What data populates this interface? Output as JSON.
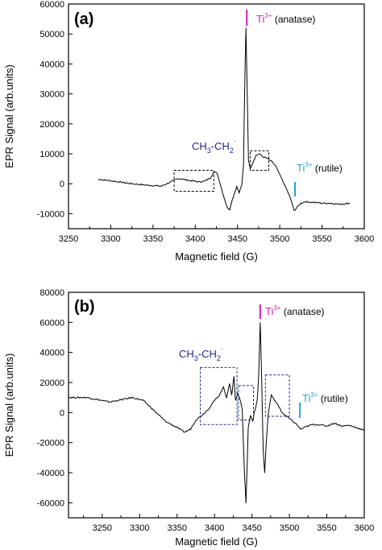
{
  "chart_data": [
    {
      "type": "line",
      "panel_label": "(a)",
      "xlabel": "Magnetic field (G)",
      "ylabel": "EPR Signal (arb.units)",
      "xlim": [
        3250,
        3600
      ],
      "ylim": [
        -15000,
        60000
      ],
      "x_ticks": [
        "3250",
        "3300",
        "3350",
        "3400",
        "3450",
        "3500",
        "3550",
        "3600"
      ],
      "y_ticks": [
        "-10000",
        "0",
        "10000",
        "20000",
        "30000",
        "40000",
        "50000",
        "60000"
      ],
      "series": [
        {
          "color": "#000000",
          "x": [
            3285,
            3300,
            3320,
            3340,
            3360,
            3380,
            3395,
            3405,
            3412,
            3418,
            3422,
            3426,
            3430,
            3434,
            3438,
            3441,
            3443,
            3446,
            3449,
            3452,
            3455,
            3457,
            3459,
            3460,
            3461,
            3463,
            3465,
            3468,
            3472,
            3476,
            3480,
            3485,
            3490,
            3495,
            3500,
            3505,
            3510,
            3514,
            3517,
            3520,
            3525,
            3530,
            3540,
            3550,
            3560,
            3570,
            3583
          ],
          "values": [
            1500,
            1000,
            200,
            -400,
            -800,
            1800,
            1000,
            600,
            1000,
            2000,
            4000,
            3500,
            -500,
            -4500,
            -8000,
            -8500,
            -6000,
            -3500,
            -1000,
            -3000,
            -500,
            6000,
            40000,
            52000,
            38000,
            8000,
            5000,
            7000,
            9500,
            10000,
            9000,
            8500,
            7500,
            6000,
            3000,
            0,
            -3000,
            -6000,
            -9000,
            -8000,
            -6500,
            -6000,
            -6200,
            -6500,
            -6500,
            -6800,
            -6500
          ]
        }
      ],
      "annotations": [
        {
          "text": "Ti",
          "sup": "3+",
          "suffix": " (anatase)",
          "color": "#d21fb5",
          "x": 3461
        },
        {
          "text": "CH",
          "sub1": "3",
          "mid": "-CH",
          "sub2": "2",
          "sup": "·",
          "color": "#1d2a8c"
        },
        {
          "text": "Ti",
          "sup": "3+",
          "suffix": " (rutile)",
          "color": "#2aa0d8",
          "x": 3518
        }
      ],
      "boxes": [
        {
          "x0": 3375,
          "x1": 3422,
          "y0": -2500,
          "y1": 4500,
          "color": "#000000"
        },
        {
          "x0": 3465,
          "x1": 3487,
          "y0": 4500,
          "y1": 11000,
          "color": "#000000"
        }
      ]
    },
    {
      "type": "line",
      "panel_label": "(b)",
      "xlabel": "Magnetic field (G)",
      "ylabel": "EPR Signal (arb.units)",
      "xlim": [
        3205,
        3600
      ],
      "ylim": [
        -70000,
        80000
      ],
      "x_ticks": [
        "3250",
        "3300",
        "3350",
        "3400",
        "3450",
        "3500",
        "3550",
        "3600"
      ],
      "y_ticks": [
        "-60000",
        "-40000",
        "-20000",
        "0",
        "20000",
        "40000",
        "60000",
        "80000"
      ],
      "series": [
        {
          "color": "#000000",
          "x": [
            3205,
            3230,
            3260,
            3290,
            3305,
            3320,
            3335,
            3350,
            3360,
            3368,
            3375,
            3385,
            3393,
            3400,
            3407,
            3412,
            3416,
            3420,
            3423,
            3426,
            3428,
            3431,
            3434,
            3437,
            3440,
            3442,
            3443,
            3445,
            3448,
            3451,
            3453,
            3455,
            3457,
            3459,
            3461,
            3463,
            3465,
            3467,
            3469,
            3472,
            3476,
            3480,
            3485,
            3490,
            3495,
            3500,
            3505,
            3510,
            3515,
            3520,
            3530,
            3540,
            3550,
            3560,
            3570,
            3580,
            3590,
            3600
          ],
          "values": [
            10000,
            10000,
            7000,
            10000,
            8000,
            1000,
            -6000,
            -10000,
            -13000,
            -11000,
            -5000,
            -1000,
            3000,
            8000,
            12000,
            17000,
            10000,
            19000,
            12000,
            24000,
            8000,
            13000,
            9000,
            2000,
            -40000,
            -60000,
            -45000,
            -10000,
            -2000,
            -6000,
            0,
            3000,
            8000,
            25000,
            60000,
            22000,
            -25000,
            -40000,
            -20000,
            0,
            12000,
            8000,
            5000,
            0,
            -2000,
            -4000,
            -6000,
            -8000,
            -11000,
            -10000,
            -8000,
            -8000,
            -9000,
            -7000,
            -9000,
            -8500,
            -10000,
            -12000
          ]
        }
      ],
      "annotations": [
        {
          "text": "Ti",
          "sup": "3+",
          "suffix": " (anatase)",
          "color": "#d21fb5",
          "x": 3461
        },
        {
          "text": "CH",
          "sub1": "3",
          "mid": "-CH",
          "sub2": "2",
          "sup": "·",
          "color": "#1d2a8c"
        },
        {
          "text": "Ti",
          "sup": "3+",
          "suffix": " (rutile)",
          "color": "#2aa0d8",
          "x": 3514
        }
      ],
      "boxes": [
        {
          "x0": 3381,
          "x1": 3430,
          "y0": -8000,
          "y1": 30000,
          "color": "#1d2a8c"
        },
        {
          "x0": 3432,
          "x1": 3452,
          "y0": -5000,
          "y1": 18000,
          "color": "#1d2a8c"
        },
        {
          "x0": 3468,
          "x1": 3500,
          "y0": -2500,
          "y1": 25000,
          "color": "#1d2a8c"
        }
      ]
    }
  ]
}
